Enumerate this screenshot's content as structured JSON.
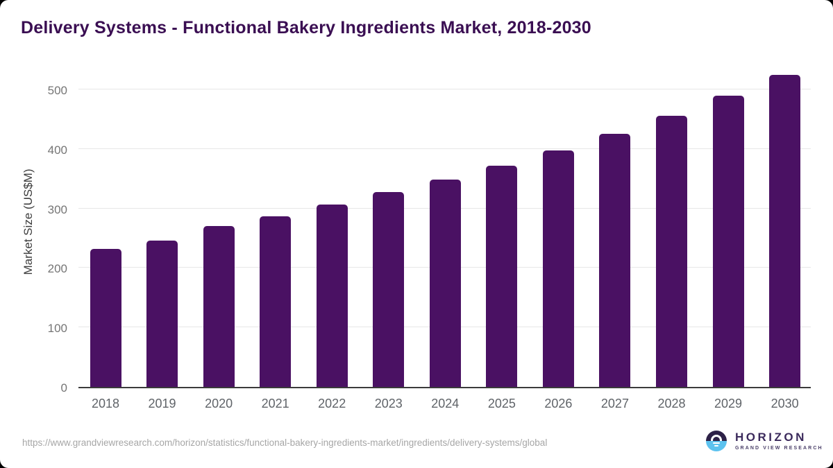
{
  "title": "Delivery Systems - Functional Bakery Ingredients Market, 2018-2030",
  "footer": {
    "source_url": "https://www.grandviewresearch.com/horizon/statistics/functional-bakery-ingredients-market/ingredients/delivery-systems/global"
  },
  "logo": {
    "name": "HORIZON",
    "subtitle": "GRAND VIEW RESEARCH"
  },
  "colors": {
    "bar": "#4A1163",
    "title_text": "#3A0E52",
    "gridline": "#E7E7E7",
    "axis_line": "#3B3B3B",
    "y_tick_label": "#757575",
    "x_tick_label": "#5F6368",
    "url_text": "#A6A6A6",
    "logo_dark": "#2D2147",
    "logo_blue": "#5CC2EF",
    "logo_text": "#3B2A5C"
  },
  "chart_data": {
    "type": "bar",
    "title": "Delivery Systems - Functional Bakery Ingredients Market, 2018-2030",
    "xlabel": "",
    "ylabel": "Market Size (US$M)",
    "categories": [
      "2018",
      "2019",
      "2020",
      "2021",
      "2022",
      "2023",
      "2024",
      "2025",
      "2026",
      "2027",
      "2028",
      "2029",
      "2030"
    ],
    "values": [
      232,
      246,
      270,
      287,
      307,
      327,
      348,
      372,
      398,
      425,
      456,
      489,
      524
    ],
    "yticks": [
      0,
      100,
      200,
      300,
      400,
      500
    ],
    "ylim": [
      0,
      550
    ],
    "grid": "horizontal",
    "legend": "none",
    "bar_color": "#4A1163"
  }
}
